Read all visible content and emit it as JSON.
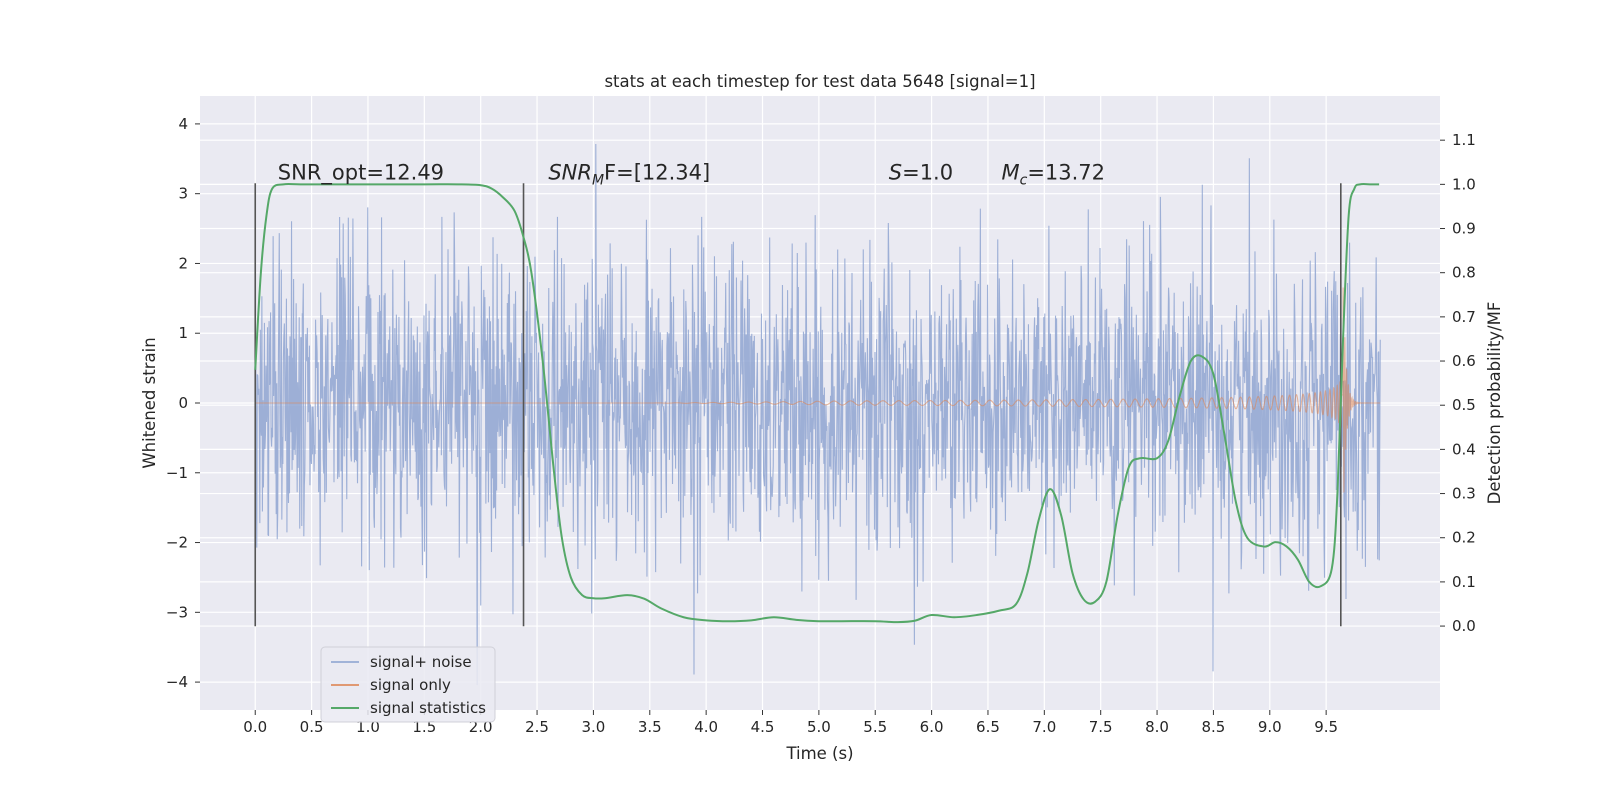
{
  "chart_data": {
    "type": "line",
    "title": "stats at each timestep for test data 5648 [signal=1]",
    "xlabel": "Time (s)",
    "ylabel": "Whitened strain",
    "ylabel_right": "Detection probability/MF",
    "xlim": [
      -0.49,
      10.51
    ],
    "ylim": [
      -4.4,
      4.4
    ],
    "ylim_right": [
      -0.19,
      1.2
    ],
    "x_ticks": [
      "0.0",
      "0.5",
      "1.0",
      "1.5",
      "2.0",
      "2.5",
      "3.0",
      "3.5",
      "4.0",
      "4.5",
      "5.0",
      "5.5",
      "6.0",
      "6.5",
      "7.0",
      "7.5",
      "8.0",
      "8.5",
      "9.0",
      "9.5"
    ],
    "y_ticks": [
      "4",
      "3",
      "2",
      "1",
      "0",
      "−1",
      "−2",
      "−3",
      "−4"
    ],
    "y_right_ticks": [
      "1.1",
      "1.0",
      "0.9",
      "0.8",
      "0.7",
      "0.6",
      "0.5",
      "0.4",
      "0.3",
      "0.2",
      "0.1",
      "0.0"
    ],
    "annotations": [
      {
        "text": "SNR_opt=12.49",
        "x": 0.2,
        "y": 3.2
      },
      {
        "base": "SNR",
        "sub": "M",
        "rest": "F=[12.34]",
        "x": 2.6,
        "y": 3.2
      },
      {
        "base": "S",
        "rest": "=1.0",
        "x": 5.62,
        "y": 3.2
      },
      {
        "base": "M",
        "sub": "c",
        "rest": "=13.72",
        "x": 6.62,
        "y": 3.2
      }
    ],
    "vlines": {
      "x": [
        0.0,
        2.38,
        9.63
      ],
      "ymin": -3.2,
      "ymax": 3.15,
      "color": "#555555"
    },
    "legend": {
      "location": "lower-left"
    },
    "grid": true,
    "series": [
      {
        "name": "signal+ noise",
        "color": "#8fa5d1",
        "kind": "noise",
        "x_range": [
          0.0,
          9.98
        ],
        "envelope": [
          -4.05,
          4.0
        ]
      },
      {
        "name": "signal only",
        "color": "#dd8452",
        "kind": "chirp",
        "x_range": [
          0.0,
          9.98
        ],
        "envelope_end": 1.1,
        "merger_x": 9.65
      },
      {
        "name": "signal statistics",
        "color": "#55a868",
        "axis": "right",
        "x": [
          0.0,
          0.05,
          0.1,
          0.15,
          0.25,
          0.4,
          0.7,
          1.0,
          1.5,
          1.8,
          2.0,
          2.1,
          2.2,
          2.3,
          2.38,
          2.45,
          2.55,
          2.65,
          2.72,
          2.8,
          2.9,
          3.0,
          3.1,
          3.3,
          3.45,
          3.6,
          3.8,
          4.0,
          4.2,
          4.4,
          4.6,
          4.8,
          5.0,
          5.2,
          5.5,
          5.7,
          5.85,
          6.0,
          6.2,
          6.4,
          6.6,
          6.75,
          6.85,
          6.95,
          7.05,
          7.15,
          7.25,
          7.35,
          7.45,
          7.55,
          7.65,
          7.75,
          7.85,
          8.0,
          8.1,
          8.2,
          8.3,
          8.4,
          8.5,
          8.6,
          8.7,
          8.8,
          8.95,
          9.05,
          9.15,
          9.25,
          9.35,
          9.45,
          9.55,
          9.6,
          9.65,
          9.7,
          9.75,
          9.8,
          9.9,
          9.97
        ],
        "y": [
          0.58,
          0.8,
          0.93,
          0.99,
          1.0,
          1.0,
          1.0,
          1.0,
          1.0,
          1.0,
          0.998,
          0.99,
          0.97,
          0.94,
          0.88,
          0.8,
          0.6,
          0.35,
          0.2,
          0.11,
          0.07,
          0.063,
          0.063,
          0.07,
          0.062,
          0.04,
          0.02,
          0.013,
          0.011,
          0.013,
          0.02,
          0.014,
          0.011,
          0.011,
          0.011,
          0.009,
          0.012,
          0.025,
          0.02,
          0.025,
          0.035,
          0.05,
          0.12,
          0.24,
          0.31,
          0.25,
          0.12,
          0.06,
          0.055,
          0.1,
          0.25,
          0.36,
          0.38,
          0.38,
          0.42,
          0.52,
          0.6,
          0.61,
          0.57,
          0.43,
          0.28,
          0.2,
          0.18,
          0.19,
          0.18,
          0.15,
          0.1,
          0.09,
          0.13,
          0.3,
          0.65,
          0.93,
          0.99,
          1.0,
          1.0,
          1.0
        ]
      }
    ]
  }
}
